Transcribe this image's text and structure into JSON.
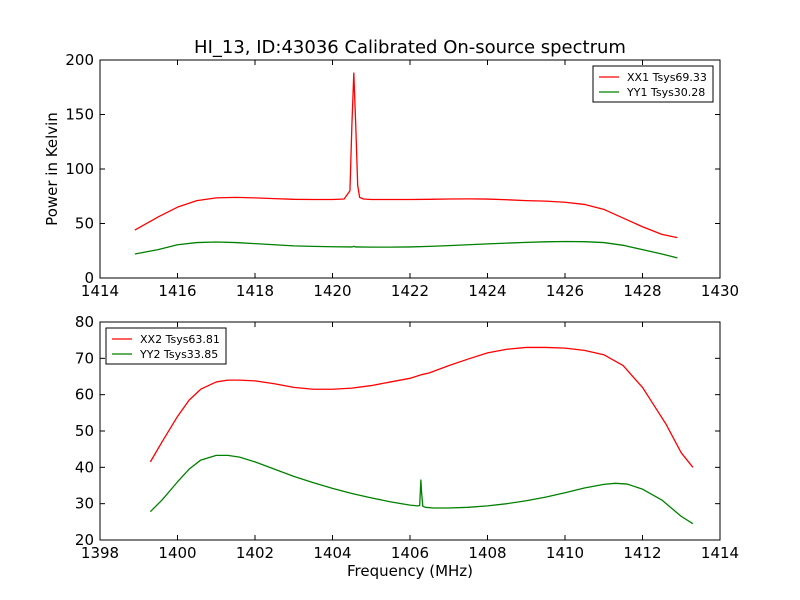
{
  "chart_data": [
    {
      "type": "line",
      "title": "HI_13, ID:43036 Calibrated On-source spectrum",
      "xlabel": "",
      "ylabel": "Power in Kelvin",
      "xlim": [
        1414,
        1430
      ],
      "ylim": [
        0,
        200
      ],
      "xticks": [
        1414,
        1416,
        1418,
        1420,
        1422,
        1424,
        1426,
        1428,
        1430
      ],
      "yticks": [
        0,
        50,
        100,
        150,
        200
      ],
      "grid": false,
      "legend_position": "top-right",
      "series": [
        {
          "name": "XX1 Tsys69.33",
          "color": "#ff0000",
          "x": [
            1414.9,
            1415.5,
            1416.0,
            1416.5,
            1417.0,
            1417.5,
            1418.0,
            1418.5,
            1419.0,
            1419.5,
            1420.0,
            1420.3,
            1420.45,
            1420.5,
            1420.55,
            1420.6,
            1420.65,
            1420.7,
            1420.8,
            1421.0,
            1421.5,
            1422.0,
            1422.5,
            1423.0,
            1423.5,
            1424.0,
            1424.5,
            1425.0,
            1425.5,
            1426.0,
            1426.5,
            1427.0,
            1427.5,
            1428.0,
            1428.5,
            1428.9
          ],
          "y": [
            44,
            56,
            65,
            71,
            73.5,
            74,
            73.5,
            72.8,
            72.2,
            72,
            72,
            72.5,
            80,
            140,
            188,
            140,
            85,
            74,
            72.5,
            72,
            72,
            72,
            72.2,
            72.5,
            72.6,
            72.4,
            71.8,
            71,
            70.5,
            69.5,
            67.5,
            63,
            55,
            47,
            40,
            37
          ]
        },
        {
          "name": "YY1 Tsys30.28",
          "color": "#008000",
          "x": [
            1414.9,
            1415.5,
            1416.0,
            1416.5,
            1417.0,
            1417.5,
            1418.0,
            1418.5,
            1419.0,
            1419.5,
            1420.0,
            1420.5,
            1420.55,
            1420.6,
            1421.0,
            1421.5,
            1422.0,
            1422.5,
            1423.0,
            1423.5,
            1424.0,
            1424.5,
            1425.0,
            1425.5,
            1426.0,
            1426.5,
            1427.0,
            1427.5,
            1428.0,
            1428.5,
            1428.9
          ],
          "y": [
            22,
            26,
            30.5,
            32.5,
            33,
            32.5,
            31.5,
            30.5,
            29.5,
            29,
            28.7,
            28.5,
            29,
            28.5,
            28.3,
            28.3,
            28.5,
            29,
            29.7,
            30.5,
            31.3,
            32,
            32.7,
            33.2,
            33.5,
            33.3,
            32.5,
            30,
            26,
            22,
            18.5
          ]
        }
      ]
    },
    {
      "type": "line",
      "title": "",
      "xlabel": "Frequency (MHz)",
      "ylabel": "",
      "xlim": [
        1398,
        1414
      ],
      "ylim": [
        20,
        80
      ],
      "xticks": [
        1398,
        1400,
        1402,
        1404,
        1406,
        1408,
        1410,
        1412,
        1414
      ],
      "yticks": [
        20,
        30,
        40,
        50,
        60,
        70,
        80
      ],
      "grid": false,
      "legend_position": "top-left",
      "series": [
        {
          "name": "XX2 Tsys63.81",
          "color": "#ff0000",
          "x": [
            1399.3,
            1399.6,
            1400.0,
            1400.3,
            1400.6,
            1401.0,
            1401.3,
            1401.6,
            1402.0,
            1402.5,
            1403.0,
            1403.5,
            1404.0,
            1404.5,
            1405.0,
            1405.5,
            1406.0,
            1406.3,
            1406.5,
            1407.0,
            1407.5,
            1408.0,
            1408.5,
            1409.0,
            1409.5,
            1410.0,
            1410.5,
            1411.0,
            1411.5,
            1412.0,
            1412.3,
            1412.6,
            1413.0,
            1413.3
          ],
          "y": [
            41.5,
            47,
            54,
            58.5,
            61.5,
            63.5,
            64,
            64,
            63.8,
            63,
            62,
            61.5,
            61.5,
            61.8,
            62.5,
            63.5,
            64.5,
            65.5,
            66,
            68,
            69.8,
            71.5,
            72.5,
            73,
            73,
            72.8,
            72.2,
            71,
            68,
            62,
            57,
            52,
            44,
            40
          ]
        },
        {
          "name": "YY2 Tsys33.85",
          "color": "#008000",
          "x": [
            1399.3,
            1399.6,
            1400.0,
            1400.3,
            1400.6,
            1401.0,
            1401.3,
            1401.6,
            1402.0,
            1402.5,
            1403.0,
            1403.5,
            1404.0,
            1404.5,
            1405.0,
            1405.5,
            1406.0,
            1406.2,
            1406.25,
            1406.28,
            1406.3,
            1406.33,
            1406.4,
            1406.6,
            1407.0,
            1407.5,
            1408.0,
            1408.5,
            1409.0,
            1409.5,
            1410.0,
            1410.5,
            1411.0,
            1411.3,
            1411.6,
            1412.0,
            1412.5,
            1413.0,
            1413.3
          ],
          "y": [
            27.8,
            31,
            36,
            39.5,
            42,
            43.3,
            43.3,
            42.8,
            41.5,
            39.5,
            37.5,
            35.8,
            34.2,
            32.8,
            31.6,
            30.5,
            29.6,
            29.4,
            29.5,
            36.5,
            33,
            29.3,
            29,
            28.8,
            28.8,
            29,
            29.4,
            30,
            30.8,
            31.8,
            33,
            34.3,
            35.3,
            35.6,
            35.4,
            34,
            31,
            26.5,
            24.5
          ]
        }
      ]
    }
  ]
}
